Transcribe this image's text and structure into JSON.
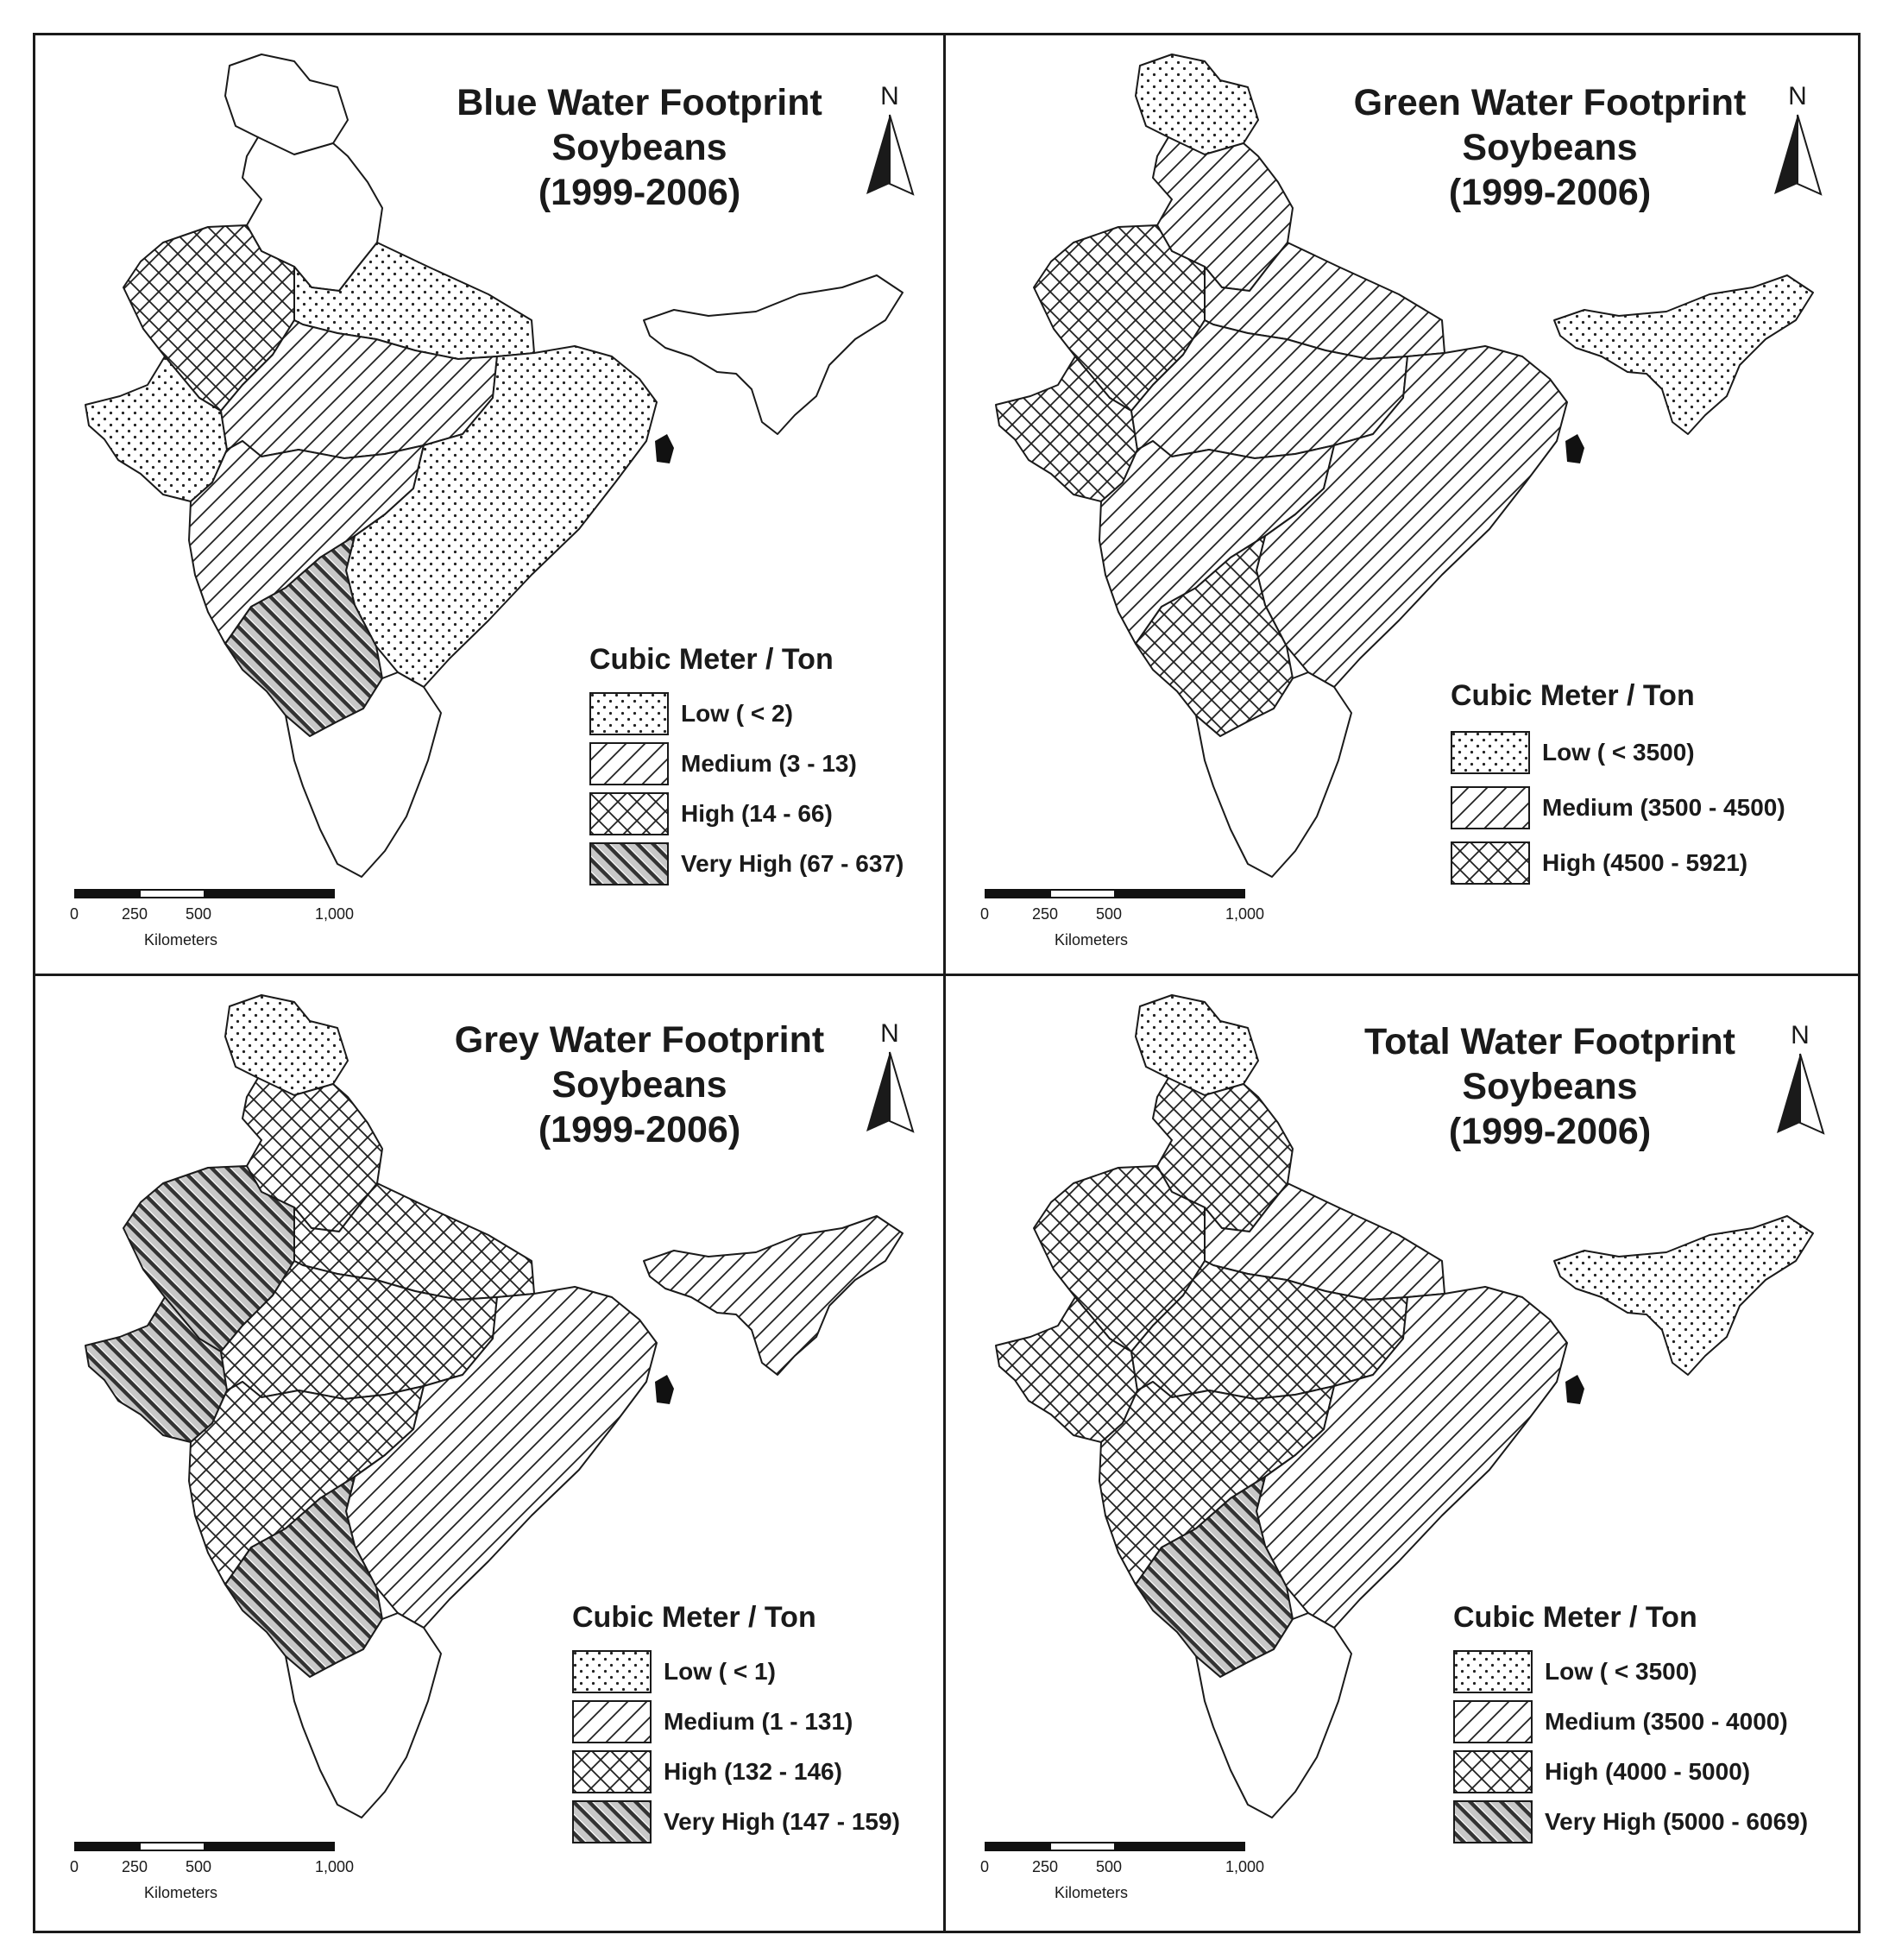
{
  "panels": [
    {
      "title_line1": "Blue Water Footprint",
      "title_line2": "Soybeans",
      "title_line3": "(1999-2006)",
      "legend_title": "Cubic Meter / Ton",
      "legend": [
        {
          "label": "Low ( < 2)",
          "pattern": "dots"
        },
        {
          "label": "Medium (3 - 13)",
          "pattern": "diag"
        },
        {
          "label": "High (14 - 66)",
          "pattern": "cross"
        },
        {
          "label": "Very High (67 - 637)",
          "pattern": "veryhigh"
        }
      ],
      "north": "N",
      "scale": {
        "ticks": [
          "0",
          "250",
          "500",
          "1,000"
        ],
        "unit": "Kilometers"
      },
      "regions": {
        "jk": "white",
        "north": "white",
        "rajasthan": "cross",
        "gujarat": "dots",
        "up": "dots",
        "mp": "diag",
        "maharashtra": "diag",
        "east": "dots",
        "karnataka": "veryhigh",
        "south": "white",
        "northeast": "white"
      }
    },
    {
      "title_line1": "Green Water Footprint",
      "title_line2": "Soybeans",
      "title_line3": "(1999-2006)",
      "legend_title": "Cubic Meter / Ton",
      "legend": [
        {
          "label": "Low ( < 3500)",
          "pattern": "dots"
        },
        {
          "label": "Medium (3500 - 4500)",
          "pattern": "diag"
        },
        {
          "label": "High (4500 - 5921)",
          "pattern": "cross"
        }
      ],
      "north": "N",
      "scale": {
        "ticks": [
          "0",
          "250",
          "500",
          "1,000"
        ],
        "unit": "Kilometers"
      },
      "regions": {
        "jk": "dots",
        "north": "diag",
        "rajasthan": "cross",
        "gujarat": "cross",
        "up": "diag",
        "mp": "diag",
        "maharashtra": "diag",
        "east": "diag",
        "karnataka": "cross",
        "south": "white",
        "northeast": "dots"
      }
    },
    {
      "title_line1": "Grey Water Footprint",
      "title_line2": "Soybeans",
      "title_line3": "(1999-2006)",
      "legend_title": "Cubic Meter / Ton",
      "legend": [
        {
          "label": "Low ( < 1)",
          "pattern": "dots"
        },
        {
          "label": "Medium (1 - 131)",
          "pattern": "diag"
        },
        {
          "label": "High (132 - 146)",
          "pattern": "cross"
        },
        {
          "label": "Very High (147 - 159)",
          "pattern": "veryhigh"
        }
      ],
      "north": "N",
      "scale": {
        "ticks": [
          "0",
          "250",
          "500",
          "1,000"
        ],
        "unit": "Kilometers"
      },
      "regions": {
        "jk": "dots",
        "north": "cross",
        "rajasthan": "veryhigh",
        "gujarat": "veryhigh",
        "up": "cross",
        "mp": "cross",
        "maharashtra": "cross",
        "east": "diag",
        "karnataka": "veryhigh",
        "south": "white",
        "northeast": "diag"
      }
    },
    {
      "title_line1": "Total Water Footprint",
      "title_line2": "Soybeans",
      "title_line3": "(1999-2006)",
      "legend_title": "Cubic Meter / Ton",
      "legend": [
        {
          "label": "Low ( < 3500)",
          "pattern": "dots"
        },
        {
          "label": "Medium (3500 - 4000)",
          "pattern": "diag"
        },
        {
          "label": "High (4000 - 5000)",
          "pattern": "cross"
        },
        {
          "label": "Very High (5000 - 6069)",
          "pattern": "veryhigh"
        }
      ],
      "north": "N",
      "scale": {
        "ticks": [
          "0",
          "250",
          "500",
          "1,000"
        ],
        "unit": "Kilometers"
      },
      "regions": {
        "jk": "dots",
        "north": "cross",
        "rajasthan": "cross",
        "gujarat": "cross",
        "up": "diag",
        "mp": "cross",
        "maharashtra": "cross",
        "east": "diag",
        "karnataka": "veryhigh",
        "south": "white",
        "northeast": "dots"
      }
    }
  ]
}
